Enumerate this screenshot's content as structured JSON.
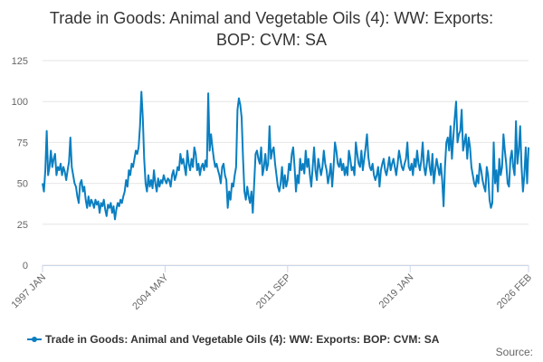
{
  "chart_data": {
    "type": "line",
    "title": "Trade in Goods: Animal and Vegetable Oils (4): WW: Exports: BOP: CVM: SA",
    "source_label": "Source:",
    "ylim": [
      0,
      125
    ],
    "yticks": [
      0,
      25,
      50,
      75,
      100,
      125
    ],
    "grid": true,
    "legend": "bottom",
    "categories": [
      "1997 JAN",
      null,
      null,
      null,
      null,
      null,
      null,
      null,
      null,
      null,
      null,
      null,
      null,
      null,
      null,
      null,
      null,
      null,
      null,
      null,
      null,
      null,
      null,
      null,
      null,
      null,
      null,
      null,
      null,
      null,
      null,
      null,
      null,
      null,
      null,
      null,
      null,
      null,
      null,
      null,
      null,
      null,
      null,
      null,
      null,
      null,
      null,
      null,
      null,
      null,
      null,
      null,
      null,
      null,
      null,
      null,
      null,
      null,
      null,
      null,
      null,
      null,
      null,
      null,
      null,
      null,
      null,
      null,
      null,
      null,
      null,
      null,
      null,
      null,
      null,
      null,
      null,
      null,
      null,
      null,
      null,
      null,
      null,
      null,
      null,
      null,
      null,
      null,
      "2004 MAY",
      null,
      null,
      null,
      null,
      null,
      null,
      null,
      null,
      null,
      null,
      null,
      null,
      null,
      null,
      null,
      null,
      null,
      null,
      null,
      null,
      null,
      null,
      null,
      null,
      null,
      null,
      null,
      null,
      null,
      null,
      null,
      null,
      null,
      null,
      null,
      null,
      null,
      null,
      null,
      null,
      null,
      null,
      null,
      null,
      null,
      null,
      null,
      null,
      null,
      null,
      null,
      null,
      null,
      null,
      null,
      null,
      null,
      null,
      null,
      null,
      null,
      null,
      null,
      null,
      null,
      null,
      null,
      null,
      null,
      null,
      null,
      null,
      null,
      null,
      null,
      null,
      null,
      null,
      null,
      null,
      null,
      null,
      null,
      null,
      null,
      null,
      null,
      "2011 SEP",
      null,
      null,
      null,
      null,
      null,
      null,
      null,
      null,
      null,
      null,
      null,
      null,
      null,
      null,
      null,
      null,
      null,
      null,
      null,
      null,
      null,
      null,
      null,
      null,
      null,
      null,
      null,
      null,
      null,
      null,
      null,
      null,
      null,
      null,
      null,
      null,
      null,
      null,
      null,
      null,
      null,
      null,
      null,
      null,
      null,
      null,
      null,
      null,
      null,
      null,
      null,
      null,
      null,
      null,
      null,
      null,
      null,
      null,
      null,
      null,
      null,
      null,
      null,
      null,
      null,
      null,
      null,
      null,
      null,
      null,
      null,
      null,
      null,
      null,
      null,
      null,
      null,
      null,
      null,
      null,
      null,
      null,
      null,
      null,
      null,
      null,
      null,
      "2019 JAN",
      null,
      null,
      null,
      null,
      null,
      null,
      null,
      null,
      null,
      null,
      null,
      null,
      null,
      null,
      null,
      null,
      null,
      null,
      null,
      null,
      null,
      null,
      null,
      null,
      null,
      null,
      null,
      null,
      null,
      null,
      null,
      null,
      null,
      null,
      null,
      null,
      null,
      null,
      null,
      null,
      null,
      null,
      null,
      null,
      null,
      null,
      null,
      null,
      null,
      null,
      null,
      null,
      null,
      null,
      null,
      null,
      null,
      null,
      null,
      null,
      null,
      null,
      null,
      null,
      null,
      null,
      null,
      null,
      null,
      null,
      null,
      null,
      null,
      null,
      null,
      null,
      null,
      null,
      null,
      null,
      null,
      null,
      null,
      null,
      "2026 FEB"
    ],
    "series": [
      {
        "name": "Trade in Goods: Animal and Vegetable Oils (4): WW: Exports: BOP: CVM: SA",
        "color": "#0a7fc1",
        "values": [
          50,
          45,
          58,
          82,
          55,
          60,
          70,
          60,
          65,
          68,
          55,
          60,
          58,
          62,
          55,
          60,
          57,
          52,
          58,
          63,
          78,
          60,
          55,
          50,
          48,
          42,
          38,
          50,
          52,
          45,
          48,
          40,
          35,
          42,
          36,
          40,
          38,
          35,
          40,
          37,
          39,
          32,
          38,
          36,
          40,
          34,
          30,
          37,
          35,
          38,
          32,
          36,
          28,
          34,
          38,
          36,
          40,
          38,
          42,
          45,
          52,
          48,
          58,
          55,
          62,
          60,
          65,
          70,
          68,
          72,
          85,
          106,
          90,
          65,
          50,
          45,
          55,
          48,
          52,
          47,
          58,
          50,
          45,
          53,
          48,
          52,
          50,
          55,
          52,
          50,
          53,
          52,
          48,
          55,
          58,
          52,
          55,
          60,
          58,
          68,
          62,
          65,
          60,
          55,
          70,
          62,
          58,
          65,
          60,
          72,
          68,
          58,
          62,
          55,
          60,
          62,
          58,
          64,
          60,
          105,
          70,
          80,
          72,
          65,
          60,
          62,
          58,
          55,
          50,
          60,
          62,
          55,
          52,
          35,
          45,
          40,
          50,
          48,
          55,
          60,
          95,
          102,
          98,
          90,
          65,
          45,
          40,
          48,
          42,
          38,
          45,
          32,
          50,
          68,
          70,
          65,
          62,
          72,
          55,
          60,
          68,
          58,
          62,
          85,
          65,
          70,
          72,
          62,
          55,
          48,
          45,
          50,
          60,
          47,
          55,
          48,
          52,
          62,
          58,
          68,
          72,
          60,
          45,
          55,
          50,
          65,
          58,
          62,
          56,
          70,
          60,
          65,
          55,
          48,
          60,
          72,
          58,
          52,
          65,
          60,
          55,
          60,
          70,
          62,
          58,
          50,
          55,
          62,
          48,
          60,
          75,
          70,
          62,
          60,
          65,
          58,
          62,
          55,
          60,
          55,
          70,
          65,
          58,
          60,
          55,
          75,
          68,
          62,
          60,
          70,
          58,
          65,
          72,
          80,
          66,
          60,
          58,
          62,
          55,
          52,
          55,
          60,
          48,
          58,
          62,
          65,
          58,
          55,
          60,
          66,
          58,
          62,
          65,
          60,
          55,
          62,
          70,
          65,
          60,
          58,
          62,
          65,
          75,
          60,
          58,
          62,
          55,
          65,
          60,
          70,
          62,
          58,
          64,
          75,
          60,
          55,
          62,
          70,
          60,
          55,
          68,
          50,
          58,
          65,
          60,
          55,
          62,
          52,
          36,
          60,
          75,
          78,
          70,
          85,
          65,
          78,
          90,
          100,
          75,
          80,
          82,
          95,
          70,
          75,
          80,
          65,
          78,
          72,
          60,
          55,
          50,
          48,
          55,
          50,
          62,
          58,
          52,
          48,
          45,
          60,
          55,
          40,
          35,
          38,
          75,
          50,
          58,
          45,
          65,
          55,
          60,
          80,
          70,
          62,
          50,
          48,
          65,
          70,
          60,
          55,
          88,
          62,
          70,
          85,
          60,
          45,
          55,
          72,
          50,
          72
        ]
      }
    ]
  }
}
